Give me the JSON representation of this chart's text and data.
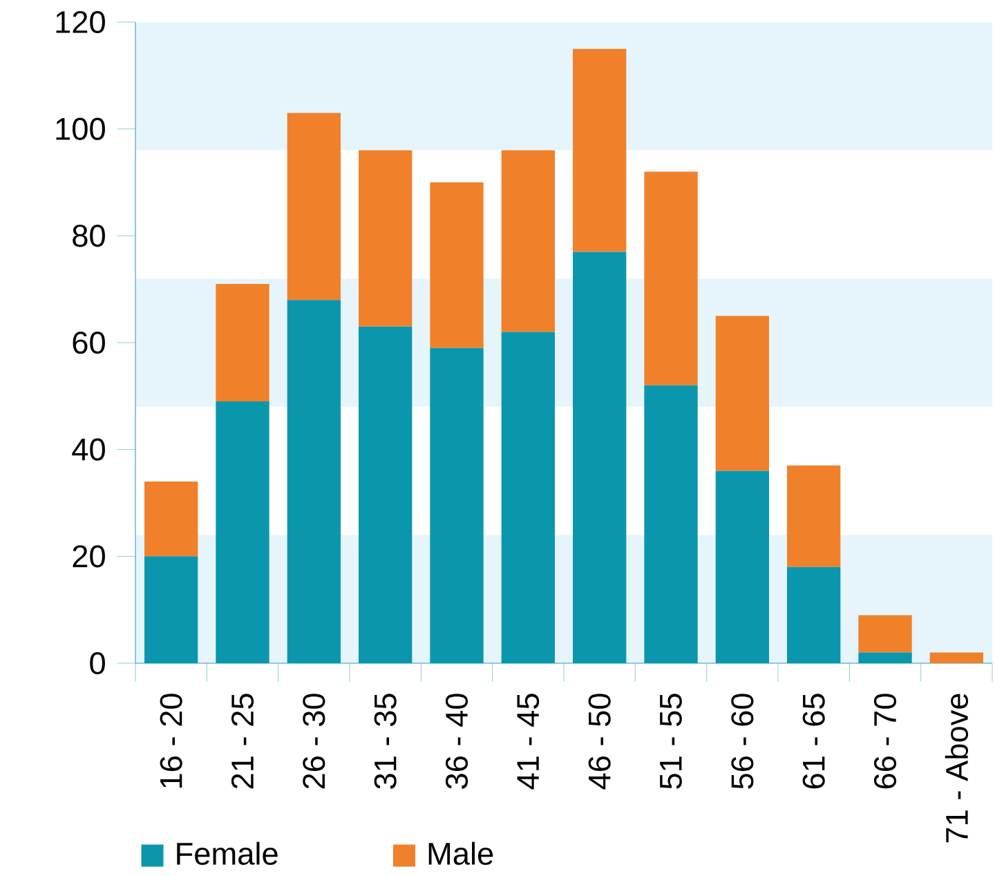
{
  "chart_data": {
    "type": "bar",
    "stacked": true,
    "categories": [
      "16 - 20",
      "21 - 25",
      "26 - 30",
      "31 - 35",
      "36 - 40",
      "41 - 45",
      "46 - 50",
      "51 - 55",
      "56 - 60",
      "61 - 65",
      "66 - 70",
      "71 - Above"
    ],
    "series": [
      {
        "name": "Female",
        "color": "#0a97ad",
        "values": [
          20,
          49,
          68,
          63,
          59,
          62,
          77,
          52,
          36,
          18,
          2,
          0
        ]
      },
      {
        "name": "Male",
        "color": "#f0812a",
        "values": [
          14,
          22,
          35,
          33,
          31,
          34,
          38,
          40,
          29,
          19,
          7,
          2
        ]
      }
    ],
    "ylim": [
      0,
      120
    ],
    "yticks": [
      0,
      20,
      40,
      60,
      80,
      100,
      120
    ],
    "bands": [
      {
        "axis": "y",
        "from": 0,
        "to": 24,
        "color": "#e6f5fc"
      },
      {
        "axis": "y",
        "from": 48,
        "to": 72,
        "color": "#e6f5fc"
      },
      {
        "axis": "y",
        "from": 96,
        "to": 120,
        "color": "#e6f5fc"
      }
    ],
    "grid": false,
    "legend": "bottom"
  }
}
